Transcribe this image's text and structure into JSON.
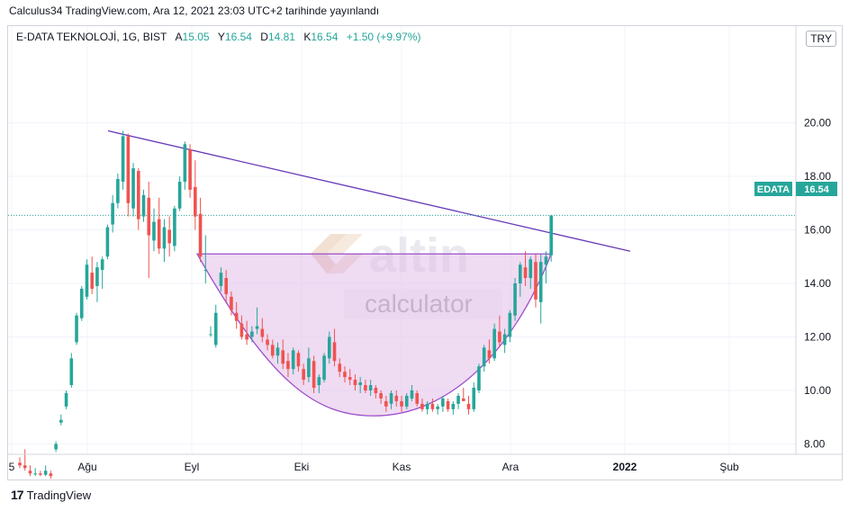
{
  "header": {
    "published_text": "Calculus34 TradingView.com, Ara 12, 2021 23:03 UTC+2 tarihinde yayınlandı"
  },
  "legend": {
    "symbol": "E-DATA TEKNOLOJİ, 1G, BIST",
    "open_label": "A",
    "open_value": "15.05",
    "high_label": "Y",
    "high_value": "16.54",
    "low_label": "D",
    "low_value": "14.81",
    "close_label": "K",
    "close_value": "16.54",
    "change": "+1.50 (+9.97%)"
  },
  "currency_button": "TRY",
  "price_tag": {
    "symbol": "EDATA",
    "value": "16.54",
    "color": "#26a69a"
  },
  "watermark": {
    "brand": "altin",
    "sub": "calculator"
  },
  "footer": {
    "logo": "17",
    "brand": "TradingView"
  },
  "colors": {
    "up": "#26a69a",
    "down": "#ef5350",
    "trendline": "#673ab7",
    "cup_fill": "#e1bee7",
    "cup_line": "#9c4dcc"
  },
  "chart_data": {
    "type": "candlestick",
    "y_ticks": [
      "20.00",
      "18.00",
      "16.00",
      "14.00",
      "12.00",
      "10.00",
      "8.00"
    ],
    "ylim": [
      6.8,
      21.0
    ],
    "x_ticks": [
      "5",
      "Ağu",
      "Eyl",
      "Eki",
      "Kas",
      "Ara",
      "2022",
      "Şub"
    ],
    "last_price": 16.54,
    "candles": [
      [
        7.3,
        7.5,
        7.1,
        7.2
      ],
      [
        7.2,
        7.8,
        7.0,
        7.1
      ],
      [
        7.0,
        7.2,
        6.8,
        6.9
      ],
      [
        6.9,
        7.1,
        6.8,
        6.9
      ],
      [
        6.9,
        7.0,
        6.8,
        6.85
      ],
      [
        6.85,
        7.2,
        6.8,
        7.0
      ],
      [
        6.9,
        7.0,
        6.7,
        6.8
      ],
      [
        7.8,
        8.1,
        7.7,
        8.0
      ],
      [
        8.8,
        9.1,
        8.7,
        8.9
      ],
      [
        9.4,
        10.0,
        9.3,
        9.9
      ],
      [
        10.2,
        11.4,
        10.1,
        11.2
      ],
      [
        11.8,
        12.9,
        11.7,
        12.8
      ],
      [
        12.7,
        13.9,
        12.6,
        13.8
      ],
      [
        13.5,
        14.9,
        13.4,
        14.7
      ],
      [
        14.4,
        15.0,
        13.6,
        13.8
      ],
      [
        13.9,
        14.8,
        13.3,
        14.6
      ],
      [
        14.5,
        15.0,
        13.8,
        14.9
      ],
      [
        15.0,
        16.2,
        14.9,
        16.1
      ],
      [
        16.2,
        17.3,
        15.9,
        17.0
      ],
      [
        17.0,
        18.1,
        16.8,
        17.9
      ],
      [
        17.8,
        19.7,
        17.5,
        19.5
      ],
      [
        19.5,
        19.6,
        16.5,
        17.0
      ],
      [
        16.8,
        18.5,
        16.5,
        18.3
      ],
      [
        18.2,
        18.3,
        16.0,
        16.4
      ],
      [
        16.5,
        17.5,
        16.3,
        17.3
      ],
      [
        17.2,
        17.8,
        14.2,
        15.8
      ],
      [
        15.6,
        16.8,
        15.2,
        16.3
      ],
      [
        16.4,
        17.2,
        15.1,
        15.3
      ],
      [
        15.3,
        16.4,
        14.8,
        16.1
      ],
      [
        16.0,
        16.5,
        15.0,
        15.5
      ],
      [
        15.4,
        16.9,
        15.2,
        16.8
      ],
      [
        16.8,
        18.0,
        16.7,
        17.8
      ],
      [
        17.8,
        19.3,
        17.5,
        19.2
      ],
      [
        19.0,
        19.2,
        17.2,
        17.5
      ],
      [
        17.6,
        18.6,
        16.0,
        16.5
      ],
      [
        16.6,
        17.2,
        14.8,
        15.0
      ],
      [
        14.5,
        15.8,
        14.0,
        14.5
      ],
      [
        12.1,
        12.4,
        12.0,
        12.1
      ],
      [
        11.7,
        13.2,
        11.6,
        12.9
      ],
      [
        13.9,
        14.6,
        13.7,
        14.4
      ],
      [
        14.2,
        14.5,
        13.3,
        13.6
      ],
      [
        13.5,
        13.7,
        12.8,
        13.0
      ],
      [
        12.9,
        13.3,
        12.3,
        12.6
      ],
      [
        12.5,
        12.8,
        11.9,
        12.0
      ],
      [
        12.1,
        12.6,
        11.7,
        11.9
      ],
      [
        12.0,
        12.4,
        11.8,
        12.2
      ],
      [
        12.3,
        13.1,
        12.1,
        12.4
      ],
      [
        12.3,
        12.7,
        11.8,
        12.0
      ],
      [
        11.9,
        12.1,
        11.5,
        11.7
      ],
      [
        11.7,
        11.9,
        11.2,
        11.3
      ],
      [
        11.3,
        11.8,
        11.0,
        11.6
      ],
      [
        11.5,
        11.9,
        10.8,
        11.0
      ],
      [
        11.1,
        11.4,
        10.5,
        10.8
      ],
      [
        10.8,
        11.6,
        10.6,
        11.5
      ],
      [
        11.4,
        11.5,
        10.7,
        10.9
      ],
      [
        10.8,
        11.0,
        10.2,
        10.4
      ],
      [
        10.5,
        11.6,
        10.3,
        11.2
      ],
      [
        11.1,
        11.3,
        9.9,
        10.1
      ],
      [
        10.2,
        10.6,
        9.9,
        10.5
      ],
      [
        10.4,
        11.4,
        10.3,
        11.3
      ],
      [
        11.2,
        12.2,
        11.0,
        12.0
      ],
      [
        11.8,
        12.3,
        10.9,
        11.1
      ],
      [
        11.0,
        11.2,
        10.5,
        10.7
      ],
      [
        10.7,
        10.9,
        10.3,
        10.5
      ],
      [
        10.5,
        10.8,
        10.2,
        10.4
      ],
      [
        10.4,
        10.6,
        10.0,
        10.2
      ],
      [
        10.2,
        10.5,
        9.9,
        10.3
      ],
      [
        10.2,
        10.4,
        9.9,
        10.0
      ],
      [
        10.0,
        10.4,
        9.8,
        10.2
      ],
      [
        10.1,
        10.2,
        9.7,
        9.9
      ],
      [
        9.9,
        10.0,
        9.5,
        9.7
      ],
      [
        9.6,
        9.8,
        9.2,
        9.4
      ],
      [
        9.5,
        10.0,
        9.3,
        9.9
      ],
      [
        9.8,
        10.0,
        9.4,
        9.6
      ],
      [
        9.6,
        9.8,
        9.2,
        9.4
      ],
      [
        9.4,
        9.9,
        9.3,
        9.8
      ],
      [
        9.7,
        10.2,
        9.6,
        10.0
      ],
      [
        9.9,
        10.0,
        9.4,
        9.5
      ],
      [
        9.5,
        9.7,
        9.2,
        9.3
      ],
      [
        9.3,
        9.6,
        9.1,
        9.5
      ],
      [
        9.5,
        9.7,
        9.2,
        9.3
      ],
      [
        9.3,
        9.5,
        9.1,
        9.4
      ],
      [
        9.4,
        9.8,
        9.2,
        9.7
      ],
      [
        9.6,
        9.7,
        9.2,
        9.3
      ],
      [
        9.3,
        9.6,
        9.1,
        9.5
      ],
      [
        9.5,
        9.9,
        9.3,
        9.8
      ],
      [
        9.7,
        10.1,
        9.6,
        9.6
      ],
      [
        9.5,
        9.8,
        9.1,
        9.3
      ],
      [
        9.3,
        10.3,
        9.2,
        10.1
      ],
      [
        10.0,
        11.0,
        9.9,
        10.9
      ],
      [
        10.9,
        11.7,
        10.7,
        11.6
      ],
      [
        11.5,
        11.9,
        11.0,
        11.2
      ],
      [
        11.2,
        12.5,
        11.1,
        12.3
      ],
      [
        12.2,
        12.8,
        11.6,
        11.8
      ],
      [
        11.7,
        12.3,
        11.4,
        12.1
      ],
      [
        12.0,
        13.0,
        11.8,
        12.9
      ],
      [
        12.8,
        14.2,
        12.6,
        14.0
      ],
      [
        14.0,
        14.8,
        13.5,
        14.7
      ],
      [
        14.6,
        15.2,
        13.9,
        14.2
      ],
      [
        14.2,
        15.0,
        13.8,
        14.9
      ],
      [
        14.8,
        15.1,
        13.1,
        13.4
      ],
      [
        13.3,
        15.1,
        12.5,
        14.8
      ],
      [
        14.7,
        15.2,
        14.0,
        15.0
      ],
      [
        15.05,
        16.54,
        14.81,
        16.54
      ]
    ]
  }
}
